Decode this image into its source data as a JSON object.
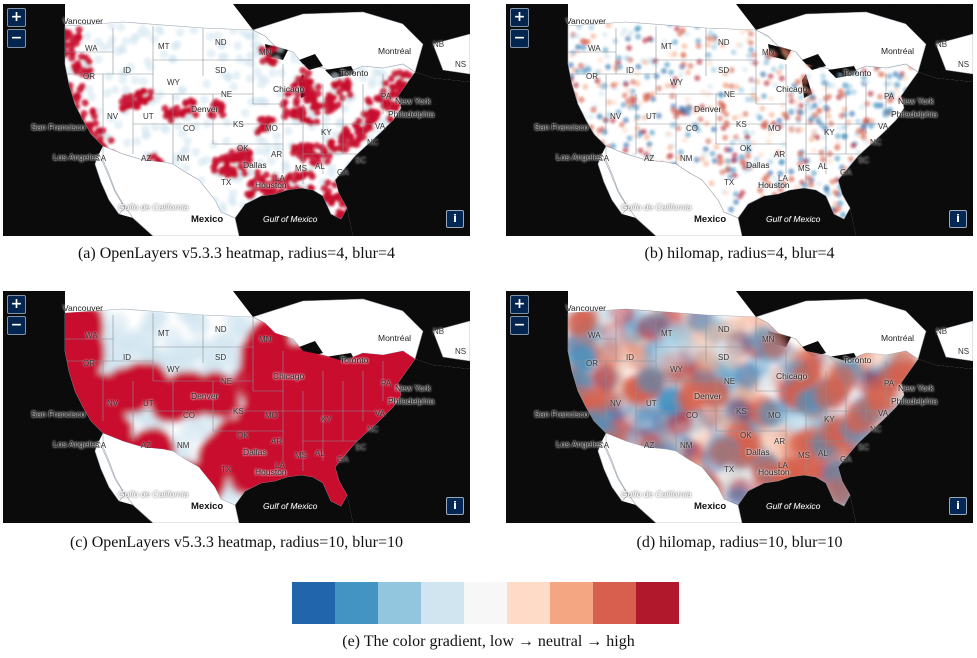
{
  "panels": [
    {
      "id": "a",
      "caption": "(a) OpenLayers v5.3.3 heatmap, radius=4, blur=4",
      "mode": "ol",
      "radius": 4
    },
    {
      "id": "b",
      "caption": "(b) hilomap, radius=4, blur=4",
      "mode": "hilo",
      "radius": 4
    },
    {
      "id": "c",
      "caption": "(c) OpenLayers v5.3.3 heatmap, radius=10, blur=10",
      "mode": "ol",
      "radius": 10
    },
    {
      "id": "d",
      "caption": "(d) hilomap, radius=10, blur=10",
      "mode": "hilo",
      "radius": 10
    }
  ],
  "controls": {
    "zoom_in": "+",
    "zoom_out": "−",
    "info": "i"
  },
  "labels": {
    "vancouver": "Vancouver",
    "montreal": "Montréal",
    "toronto": "Toronto",
    "new_york": "New York",
    "philadelphia": "Philadelphia",
    "san_francisco": "San Francisco",
    "los_angeles": "Los Angeles",
    "mexico": "Mexico",
    "gulf_of_mexico": "Gulf of Mexico",
    "gulf_of_california": "Golfo de California",
    "houston": "Houston",
    "dallas": "Dallas",
    "denver": "Denver",
    "chicago": "Chicago"
  },
  "states": [
    "WA",
    "OR",
    "ID",
    "MT",
    "ND",
    "SD",
    "WY",
    "NE",
    "NV",
    "UT",
    "CO",
    "KS",
    "CA",
    "AZ",
    "NM",
    "TX",
    "OK",
    "MN",
    "MO",
    "AR",
    "LA",
    "MS",
    "AL",
    "GA",
    "SC",
    "NC",
    "VA",
    "KY",
    "PA",
    "NB",
    "NS"
  ],
  "gradient": {
    "colors": [
      "#2166ac",
      "#4393c3",
      "#92c5de",
      "#d1e5f0",
      "#f7f7f7",
      "#fddbc7",
      "#f4a582",
      "#d6604d",
      "#b2182b"
    ],
    "caption": "(e) The color gradient, low → neutral → high"
  }
}
